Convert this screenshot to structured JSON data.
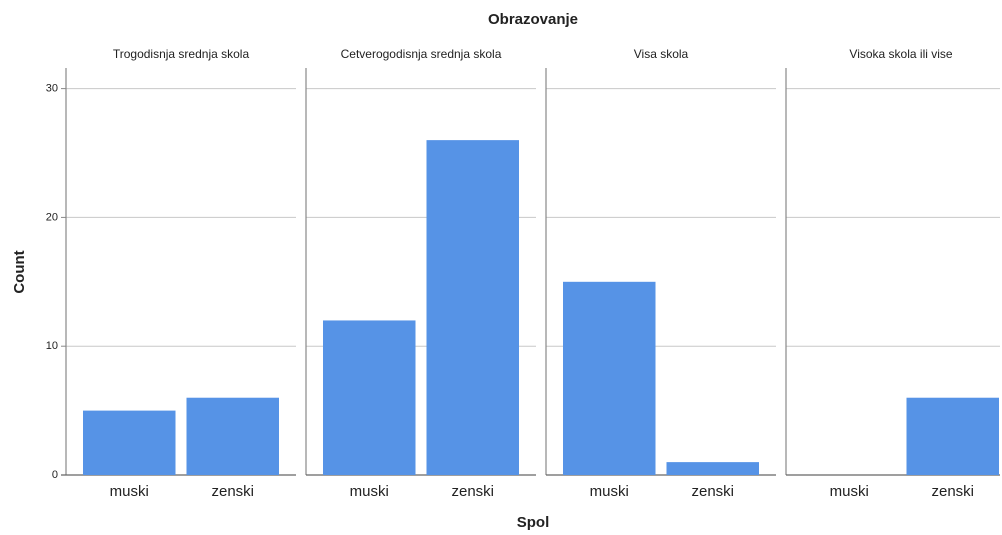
{
  "facet_label": "Obrazovanje",
  "x_label": "Spol",
  "y_label": "Count",
  "chart_data": [
    {
      "type": "bar",
      "title": "Trogodisnja srednja skola",
      "categories": [
        "muski",
        "zenski"
      ],
      "values": [
        5,
        6
      ],
      "color": "#5693e6",
      "ylim": [
        0,
        31.6
      ],
      "yticks": [
        0,
        10,
        20,
        30
      ],
      "grid": true
    },
    {
      "type": "bar",
      "title": "Cetverogodisnja srednja skola",
      "categories": [
        "muski",
        "zenski"
      ],
      "values": [
        12,
        26
      ],
      "color": "#5693e6",
      "ylim": [
        0,
        31.6
      ],
      "grid": true
    },
    {
      "type": "bar",
      "title": "Visa skola",
      "categories": [
        "muski",
        "zenski"
      ],
      "values": [
        15,
        1
      ],
      "color": "#5693e6",
      "ylim": [
        0,
        31.6
      ],
      "grid": true
    },
    {
      "type": "bar",
      "title": "Visoka skola ili vise",
      "categories": [
        "muski",
        "zenski"
      ],
      "values": [
        0,
        6
      ],
      "color": "#5693e6",
      "ylim": [
        0,
        31.6
      ],
      "grid": true
    }
  ]
}
